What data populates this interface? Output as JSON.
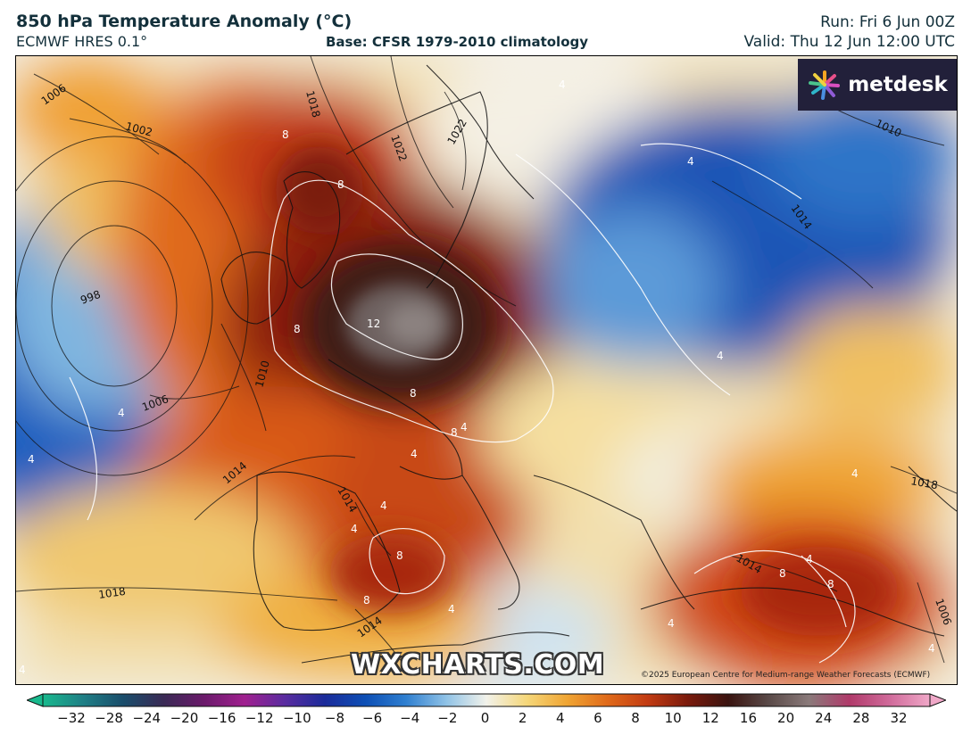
{
  "header": {
    "title": "850 hPa Temperature Anomaly (°C)",
    "model": "ECMWF HRES 0.1°",
    "base": "Base: CFSR 1979-2010 climatology",
    "run": "Run: Fri 6 Jun 00Z",
    "valid": "Valid: Thu 12 Jun 12:00 UTC"
  },
  "branding": {
    "logo_text": "metdesk",
    "watermark": "WXCHARTS.COM",
    "copyright": "©2025 European Centre for Medium-range Weather Forecasts (ECMWF)"
  },
  "map": {
    "isobar_labels": [
      "1006",
      "1002",
      "1018",
      "1022",
      "1022",
      "1010",
      "1014",
      "998",
      "1010",
      "1006",
      "1014",
      "1014",
      "1018",
      "1014",
      "1018",
      "1014",
      "1006"
    ],
    "anomaly_labels": [
      "4",
      "4",
      "8",
      "8",
      "12",
      "8",
      "8",
      "8",
      "4",
      "4",
      "4",
      "4",
      "8",
      "8",
      "4",
      "4",
      "4",
      "8",
      "4",
      "8",
      "4",
      "4",
      "4",
      "4",
      "4"
    ]
  },
  "colorbar": {
    "ticks": [
      "−32",
      "−28",
      "−24",
      "−20",
      "−16",
      "−12",
      "−10",
      "−8",
      "−6",
      "−4",
      "−2",
      "0",
      "2",
      "4",
      "6",
      "8",
      "10",
      "12",
      "16",
      "20",
      "24",
      "28",
      "32"
    ],
    "colors": [
      "#19b98d",
      "#1f7f86",
      "#1a4d6b",
      "#3a2a55",
      "#6b1a6b",
      "#a0208f",
      "#5a2ca0",
      "#1a2b9a",
      "#0d4fb5",
      "#2f7fd0",
      "#8fc2e6",
      "#f2f2ea",
      "#f5d77a",
      "#f0a533",
      "#e06a1a",
      "#c23b12",
      "#7a1a0c",
      "#3a1410",
      "#5a4a48",
      "#8a7a7a",
      "#b03a6a",
      "#d06a9a",
      "#f0a8c8"
    ]
  }
}
